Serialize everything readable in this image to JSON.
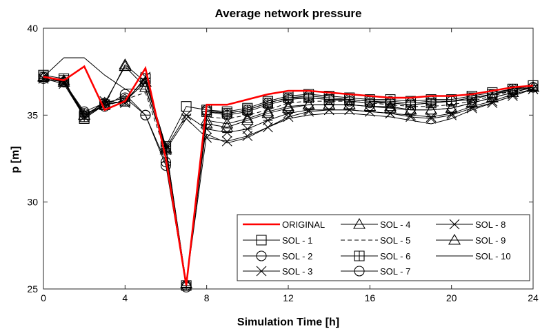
{
  "chart_data": {
    "type": "line",
    "title": "Average network pressure",
    "xlabel": "Simulation Time [h]",
    "ylabel": "p [m]",
    "xlim": [
      0,
      24
    ],
    "ylim": [
      25,
      40
    ],
    "xticks": [
      0,
      4,
      8,
      12,
      16,
      20,
      24
    ],
    "yticks": [
      25,
      30,
      35,
      40
    ],
    "grid": false,
    "legend_position": "bottom-right",
    "x": [
      0,
      1,
      2,
      3,
      4,
      5,
      6,
      7,
      8,
      9,
      10,
      11,
      12,
      13,
      14,
      15,
      16,
      17,
      18,
      19,
      20,
      21,
      22,
      23,
      24
    ],
    "series": [
      {
        "name": "ORIGINAL",
        "color": "#ff0000",
        "marker": "none",
        "dash": "solid",
        "values": [
          37.2,
          37.0,
          37.8,
          35.3,
          35.8,
          37.7,
          32.5,
          25.2,
          35.6,
          35.6,
          35.9,
          36.2,
          36.4,
          36.4,
          36.3,
          36.2,
          36.1,
          36.0,
          36.0,
          36.1,
          36.1,
          36.2,
          36.4,
          36.6,
          36.7
        ]
      },
      {
        "name": "SOL - 1",
        "color": "#000000",
        "marker": "square",
        "dash": "solid",
        "values": [
          37.3,
          37.1,
          34.8,
          35.6,
          35.8,
          37.1,
          33.2,
          35.5,
          35.3,
          35.2,
          35.4,
          35.8,
          36.1,
          36.2,
          36.1,
          36.0,
          35.9,
          35.9,
          35.8,
          35.9,
          35.9,
          36.1,
          36.3,
          36.5,
          36.7
        ]
      },
      {
        "name": "SOL - 2",
        "color": "#000000",
        "marker": "circle",
        "dash": "solid",
        "values": [
          37.2,
          36.9,
          35.1,
          35.5,
          36.2,
          35.0,
          32.1,
          25.2,
          35.3,
          35.1,
          35.3,
          35.7,
          36.0,
          36.1,
          36.0,
          35.9,
          35.8,
          35.8,
          35.7,
          35.8,
          35.8,
          36.0,
          36.2,
          36.5,
          36.6
        ]
      },
      {
        "name": "SOL - 3",
        "color": "#000000",
        "marker": "x",
        "dash": "solid",
        "values": [
          37.1,
          36.8,
          34.9,
          35.8,
          35.7,
          37.2,
          33.0,
          34.8,
          33.7,
          33.5,
          33.8,
          34.3,
          34.9,
          35.2,
          35.3,
          35.3,
          35.2,
          35.1,
          34.9,
          34.8,
          35.0,
          35.4,
          35.7,
          36.1,
          36.5
        ]
      },
      {
        "name": "SOL - 4",
        "color": "#000000",
        "marker": "triangle",
        "dash": "solid",
        "values": [
          37.2,
          37.0,
          35.0,
          35.6,
          37.9,
          36.9,
          33.1,
          25.3,
          34.5,
          34.3,
          34.7,
          35.1,
          35.4,
          35.6,
          35.6,
          35.6,
          35.5,
          35.5,
          35.3,
          35.3,
          35.4,
          35.7,
          36.0,
          36.3,
          36.6
        ]
      },
      {
        "name": "SOL - 5",
        "color": "#000000",
        "marker": "none",
        "dash": "dashed",
        "values": [
          37.2,
          36.9,
          35.0,
          35.5,
          35.9,
          36.3,
          32.8,
          25.4,
          34.9,
          34.8,
          35.0,
          35.3,
          35.7,
          35.8,
          35.8,
          35.8,
          35.7,
          35.6,
          35.5,
          35.5,
          35.6,
          35.8,
          36.1,
          36.4,
          36.6
        ]
      },
      {
        "name": "SOL - 6",
        "color": "#000000",
        "marker": "square-plus",
        "dash": "solid",
        "values": [
          37.2,
          37.0,
          34.9,
          35.6,
          35.8,
          37.1,
          33.2,
          25.2,
          35.2,
          35.1,
          35.3,
          35.7,
          36.0,
          36.0,
          35.9,
          35.9,
          35.8,
          35.7,
          35.6,
          35.7,
          35.8,
          36.0,
          36.2,
          36.5,
          36.7
        ]
      },
      {
        "name": "SOL - 7",
        "color": "#000000",
        "marker": "circle-minus",
        "dash": "solid",
        "values": [
          37.1,
          36.9,
          35.2,
          35.7,
          36.0,
          35.0,
          32.3,
          25.1,
          35.2,
          35.0,
          35.2,
          35.6,
          35.9,
          36.0,
          35.9,
          35.8,
          35.7,
          35.7,
          35.6,
          35.7,
          35.8,
          35.9,
          36.2,
          36.4,
          36.6
        ]
      },
      {
        "name": "SOL - 8",
        "color": "#000000",
        "marker": "asterisk",
        "dash": "solid",
        "values": [
          37.1,
          36.9,
          34.9,
          35.6,
          35.8,
          36.9,
          33.1,
          35.0,
          34.2,
          34.0,
          34.2,
          34.7,
          35.1,
          35.3,
          35.3,
          35.3,
          35.2,
          35.1,
          35.0,
          34.9,
          35.1,
          35.5,
          35.8,
          36.2,
          36.5
        ]
      },
      {
        "name": "SOL - 9",
        "color": "#000000",
        "marker": "triangle-minus",
        "dash": "solid",
        "values": [
          37.2,
          36.9,
          35.0,
          35.7,
          37.8,
          36.6,
          33.0,
          25.3,
          34.7,
          34.5,
          34.8,
          35.2,
          35.5,
          35.6,
          35.6,
          35.6,
          35.5,
          35.4,
          35.3,
          35.3,
          35.4,
          35.7,
          36.0,
          36.3,
          36.6
        ]
      },
      {
        "name": "SOL - 10",
        "color": "#000000",
        "marker": "none",
        "dash": "solid",
        "values": [
          37.2,
          38.3,
          38.3,
          37.3,
          36.5,
          36.5,
          33.2,
          25.3,
          33.9,
          33.4,
          33.7,
          34.3,
          34.8,
          35.0,
          35.1,
          35.1,
          35.0,
          34.9,
          34.7,
          34.5,
          34.8,
          35.3,
          35.7,
          36.1,
          36.5
        ]
      }
    ]
  }
}
